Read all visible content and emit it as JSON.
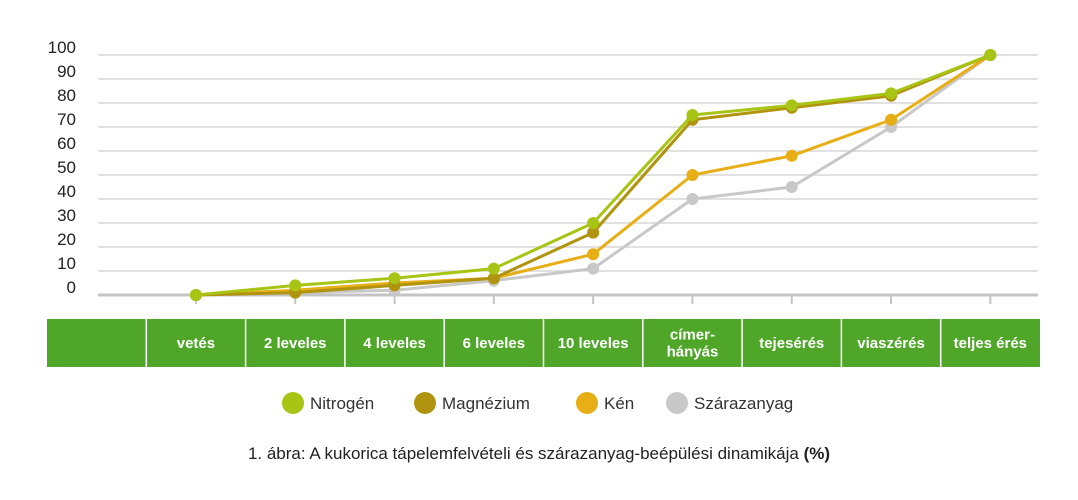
{
  "chart_data": {
    "type": "line",
    "categories": [
      "",
      "vetés",
      "2 leveles",
      "4 leveles",
      "6 leveles",
      "10 leveles",
      "címer-\nhányás",
      "tejesérés",
      "viaszérés",
      "teljes érés"
    ],
    "series": [
      {
        "name": "Nitrogén",
        "color": "#a8c414",
        "values": [
          null,
          0,
          4,
          7,
          11,
          30,
          75,
          79,
          84,
          100
        ]
      },
      {
        "name": "Magnézium",
        "color": "#b0930e",
        "values": [
          null,
          0,
          1,
          4,
          7,
          26,
          73,
          78,
          83,
          100
        ]
      },
      {
        "name": "Kén",
        "color": "#e8ae15",
        "values": [
          null,
          0,
          2,
          5,
          7,
          17,
          50,
          58,
          73,
          100
        ]
      },
      {
        "name": "Szárazanyag",
        "color": "#c8c8c8",
        "values": [
          null,
          0,
          1,
          2,
          6,
          11,
          40,
          45,
          70,
          100
        ]
      }
    ],
    "yticks": [
      0,
      10,
      20,
      30,
      40,
      50,
      60,
      70,
      80,
      90,
      100
    ],
    "ylim": [
      0,
      100
    ],
    "grid": true,
    "legend_position": "bottom",
    "category_band_color": "#4fa629"
  },
  "caption": {
    "text": "1. ábra: A kukorica tápelemfelvételi és szárazanyag-beépülési dinamikája",
    "unit": "(%)"
  }
}
